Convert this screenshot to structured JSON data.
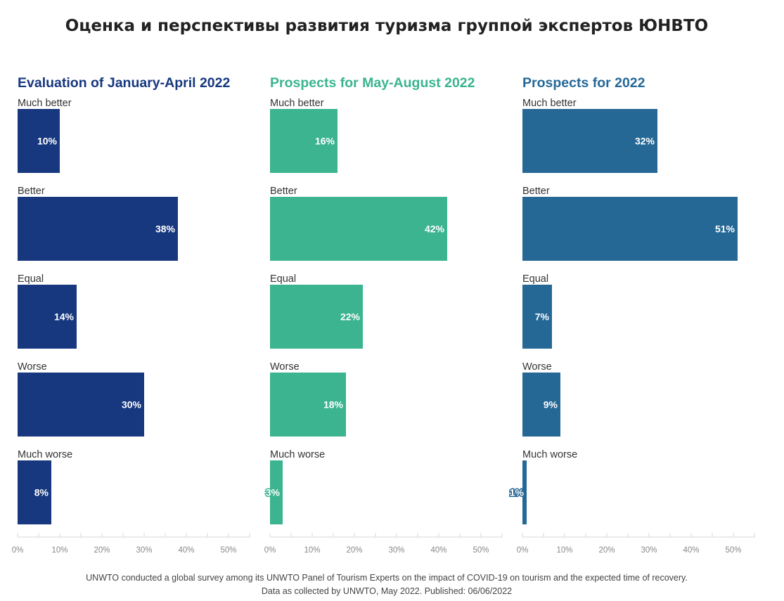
{
  "title": "Оценка и перспективы развития туризма группой экспертов ЮНВТО",
  "footer": {
    "line1": "UNWTO conducted a global survey among its UNWTO Panel of Tourism Experts on the impact of COVID-19 on tourism and the expected time of recovery.",
    "line2": "Data as collected by UNWTO, May 2022. Published: 06/06/2022"
  },
  "chart_data": [
    {
      "type": "bar",
      "orientation": "horizontal",
      "title": "Evaluation of January-April 2022",
      "color": "#17387f",
      "categories": [
        "Much better",
        "Better",
        "Equal",
        "Worse",
        "Much worse"
      ],
      "values": [
        10,
        38,
        14,
        30,
        8
      ],
      "data_labels": [
        "10%",
        "38%",
        "14%",
        "30%",
        "8%"
      ],
      "xlim": [
        0,
        55
      ],
      "x_ticks": [
        "0%",
        "10%",
        "20%",
        "30%",
        "40%",
        "50%"
      ]
    },
    {
      "type": "bar",
      "orientation": "horizontal",
      "title": "Prospects for May-August 2022",
      "color": "#3bb48f",
      "categories": [
        "Much better",
        "Better",
        "Equal",
        "Worse",
        "Much worse"
      ],
      "values": [
        16,
        42,
        22,
        18,
        3
      ],
      "data_labels": [
        "16%",
        "42%",
        "22%",
        "18%",
        "3%"
      ],
      "xlim": [
        0,
        55
      ],
      "x_ticks": [
        "0%",
        "10%",
        "20%",
        "30%",
        "40%",
        "50%"
      ]
    },
    {
      "type": "bar",
      "orientation": "horizontal",
      "title": "Prospects for 2022",
      "color": "#256896",
      "categories": [
        "Much better",
        "Better",
        "Equal",
        "Worse",
        "Much worse"
      ],
      "values": [
        32,
        51,
        7,
        9,
        1
      ],
      "data_labels": [
        "32%",
        "51%",
        "7%",
        "9%",
        "1%"
      ],
      "xlim": [
        0,
        55
      ],
      "x_ticks": [
        "0%",
        "10%",
        "20%",
        "30%",
        "40%",
        "50%"
      ]
    }
  ]
}
